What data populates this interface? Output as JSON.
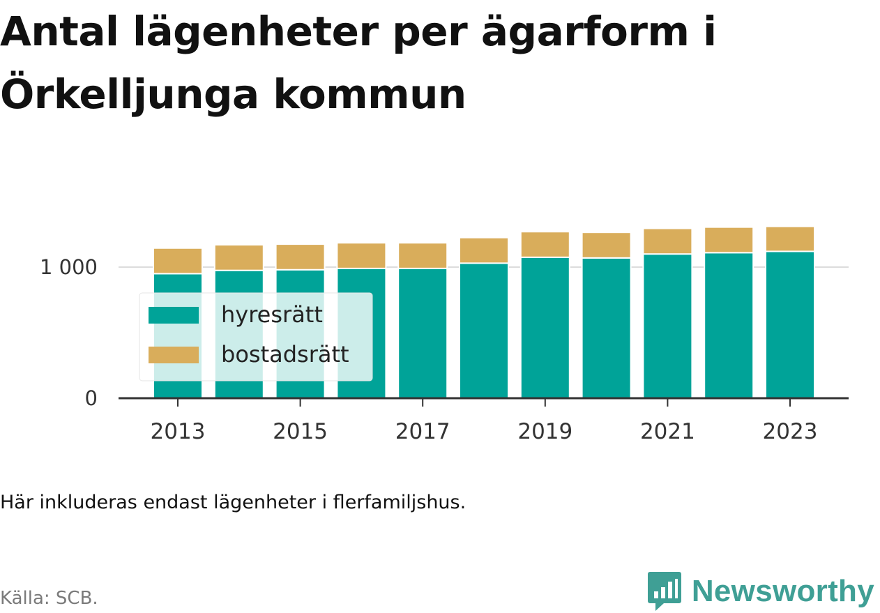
{
  "title": "Antal lägenheter per ägarform i Örkelljunga kommun",
  "note": "Här inkluderas endast lägenheter i flerfamiljshus.",
  "source": "Källa: SCB.",
  "brand": {
    "name": "Newsworthy",
    "color": "#3f9f95",
    "icon": "bar-chart-speech-bubble-icon"
  },
  "chart_data": {
    "type": "bar",
    "stacked": true,
    "categories": [
      "2013",
      "2014",
      "2015",
      "2016",
      "2017",
      "2018",
      "2019",
      "2020",
      "2021",
      "2022",
      "2023"
    ],
    "series": [
      {
        "name": "hyresrätt",
        "color": "#00a398",
        "values": [
          950,
          975,
          980,
          990,
          990,
          1030,
          1075,
          1070,
          1100,
          1110,
          1120
        ]
      },
      {
        "name": "bostadsrätt",
        "color": "#d9ad5b",
        "values": [
          195,
          195,
          195,
          195,
          195,
          195,
          195,
          195,
          195,
          195,
          190
        ]
      }
    ],
    "ylim": [
      0,
      1450
    ],
    "yticks": [
      0,
      1000
    ],
    "ytick_labels": [
      "0",
      "1 000"
    ],
    "xtick_labels": [
      "2013",
      "2015",
      "2017",
      "2019",
      "2021",
      "2023"
    ],
    "grid": "horizontal",
    "legend": "left-middle"
  }
}
